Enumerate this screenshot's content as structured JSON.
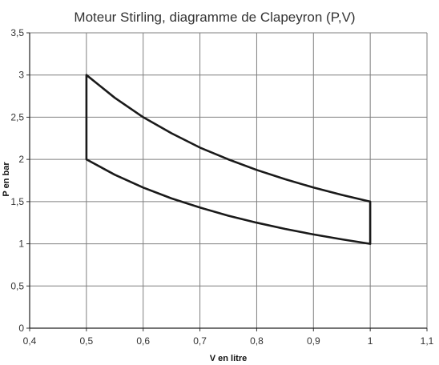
{
  "chart_data": {
    "type": "line",
    "title": "Moteur Stirling, diagramme de Clapeyron (P,V)",
    "xlabel": "V en litre",
    "ylabel": "P en bar",
    "xlim": [
      0.4,
      1.1
    ],
    "ylim": [
      0,
      3.5
    ],
    "x_ticks": [
      "0,4",
      "0,5",
      "0,6",
      "0,7",
      "0,8",
      "0,9",
      "1",
      "1,1"
    ],
    "y_ticks": [
      "0",
      "0,5",
      "1",
      "1,5",
      "2",
      "2,5",
      "3",
      "3,5"
    ],
    "grid": true,
    "legend": "none",
    "line_color": "#1a1a1a",
    "series": [
      {
        "points": [
          [
            0.5,
            3.0
          ],
          [
            0.55,
            2.73
          ],
          [
            0.6,
            2.5
          ],
          [
            0.65,
            2.31
          ],
          [
            0.7,
            2.14
          ],
          [
            0.75,
            2.0
          ],
          [
            0.8,
            1.875
          ],
          [
            0.85,
            1.765
          ],
          [
            0.9,
            1.667
          ],
          [
            0.95,
            1.579
          ],
          [
            1.0,
            1.5
          ],
          [
            1.0,
            1.0
          ],
          [
            0.95,
            1.053
          ],
          [
            0.9,
            1.111
          ],
          [
            0.85,
            1.176
          ],
          [
            0.8,
            1.25
          ],
          [
            0.75,
            1.333
          ],
          [
            0.7,
            1.429
          ],
          [
            0.65,
            1.538
          ],
          [
            0.6,
            1.667
          ],
          [
            0.55,
            1.818
          ],
          [
            0.5,
            2.0
          ],
          [
            0.5,
            3.0
          ]
        ]
      }
    ]
  }
}
